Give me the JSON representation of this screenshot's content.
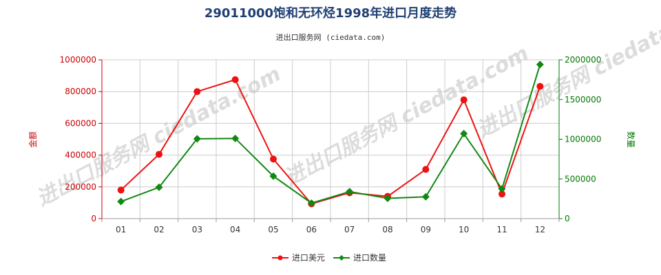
{
  "chart_data": {
    "type": "line",
    "title": "29011000饱和无环烃1998年进口月度走势",
    "subtitle": "进出口服务网 (ciedata.com)",
    "watermark": "进出口服务网 ciedata.com",
    "categories": [
      "01",
      "02",
      "03",
      "04",
      "05",
      "06",
      "07",
      "08",
      "09",
      "10",
      "11",
      "12"
    ],
    "y_left": {
      "label": "金额",
      "ylim": [
        0,
        1000000
      ],
      "ticks": [
        "0",
        "200000",
        "400000",
        "600000",
        "800000",
        "1000000"
      ],
      "color": "#e02020"
    },
    "y_right": {
      "label": "数量",
      "ylim": [
        0,
        2000000
      ],
      "ticks": [
        "0",
        "500000",
        "1000000",
        "1500000",
        "2000000"
      ],
      "color": "#008800"
    },
    "series": [
      {
        "name": "进口美元",
        "axis": "left",
        "color": "#ee1111",
        "marker": "circle",
        "values": [
          180000,
          405000,
          800000,
          875000,
          375000,
          93000,
          163000,
          140000,
          310000,
          748000,
          155000,
          833000
        ]
      },
      {
        "name": "进口数量",
        "axis": "right",
        "color": "#118811",
        "marker": "diamond",
        "values": [
          215000,
          395000,
          1005000,
          1010000,
          535000,
          195000,
          340000,
          255000,
          275000,
          1070000,
          375000,
          1940000
        ]
      }
    ],
    "grid": true,
    "legend_position": "bottom-center"
  }
}
